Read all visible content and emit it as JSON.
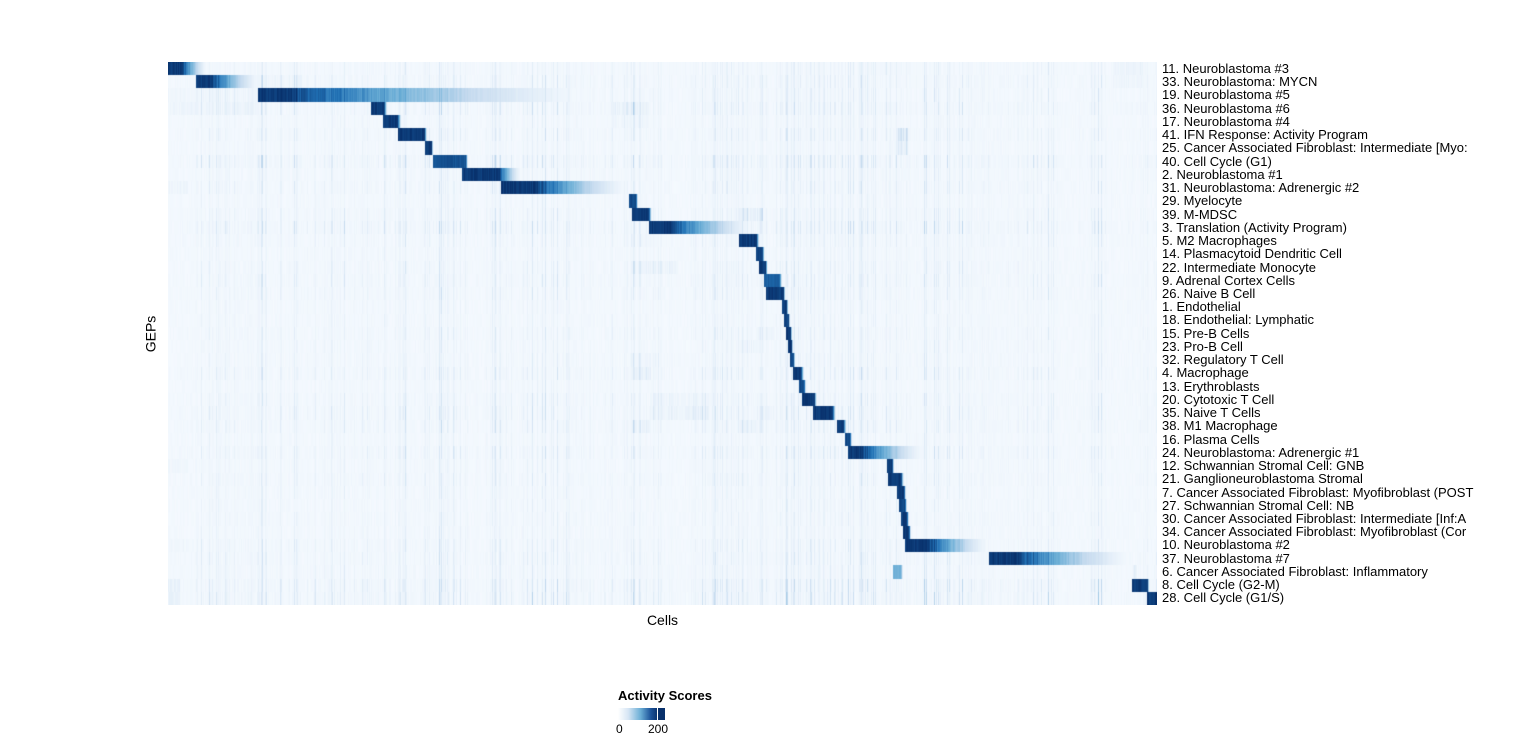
{
  "chart_data": {
    "type": "heatmap",
    "xlabel": "Cells",
    "ylabel": "GEPs",
    "legend": {
      "title": "Activity Scores",
      "tick_labels": [
        "0",
        "200"
      ],
      "tick_values": [
        0,
        200
      ],
      "tick_frac": 0.85
    },
    "colormap": {
      "low": "#F7FBFF",
      "high": "#08306B",
      "stops": [
        "#F7FBFF",
        "#C6DBEF",
        "#6BAED6",
        "#2171B5",
        "#08306B"
      ],
      "bar_css_stops": "#FFFFFF 0%, #D6E5F4 22%, #6BAED6 48%, #1B5299 70%, #08306B 85%, #08306B 100%"
    },
    "grid": false,
    "n_rows": 41,
    "value_range": [
      0,
      200
    ],
    "rows": [
      {
        "label": "11. Neuroblastoma #3",
        "block": [
          0.0,
          0.015,
          0.04
        ],
        "peak": 1.0,
        "noise": 0.35,
        "patches": [
          [
            0.7,
            0.75,
            0.18
          ],
          [
            0.955,
            0.985,
            0.35
          ]
        ]
      },
      {
        "label": "33. Neuroblastoma: MYCN",
        "block": [
          0.028,
          0.045,
          0.095
        ],
        "peak": 1.0,
        "noise": 0.5,
        "patches": [
          [
            0.095,
            0.135,
            0.3
          ],
          [
            0.955,
            0.985,
            0.3
          ]
        ]
      },
      {
        "label": "19. Neuroblastoma #5",
        "block": [
          0.091,
          0.125,
          0.44
        ],
        "peak": 1.0,
        "noise": 0.45,
        "patches": [
          [
            0.0,
            0.09,
            0.25
          ]
        ]
      },
      {
        "label": "36. Neuroblastoma #6",
        "block": [
          0.205,
          0.218,
          0.222
        ],
        "peak": 1.0,
        "noise": 0.6,
        "patches": [
          [
            0.0,
            0.09,
            0.3
          ],
          [
            0.449,
            0.486,
            0.4
          ],
          [
            0.955,
            0.985,
            0.2
          ]
        ]
      },
      {
        "label": "17. Neuroblastoma #4",
        "block": [
          0.217,
          0.232,
          0.236
        ],
        "peak": 1.0,
        "noise": 0.3,
        "patches": [
          [
            0.449,
            0.486,
            0.25
          ]
        ]
      },
      {
        "label": "41. IFN Response: Activity Program",
        "block": [
          0.232,
          0.259,
          0.262
        ],
        "peak": 1.0,
        "noise": 0.5,
        "patches": [
          [
            0.737,
            0.748,
            0.75
          ]
        ]
      },
      {
        "label": "25. Cancer Associated Fibroblast: Intermediate [Myo:",
        "block": [
          0.259,
          0.266,
          0.268
        ],
        "peak": 1.0,
        "noise": 0.3,
        "patches": [
          [
            0.737,
            0.748,
            0.5
          ]
        ]
      },
      {
        "label": "40. Cell Cycle (G1)",
        "block": [
          0.267,
          0.301,
          0.303
        ],
        "peak": 0.9,
        "noise": 0.85,
        "patches": []
      },
      {
        "label": "2. Neuroblastoma #1",
        "block": [
          0.297,
          0.334,
          0.358
        ],
        "peak": 1.0,
        "noise": 0.4,
        "patches": []
      },
      {
        "label": "31. Neuroblastoma: Adrenergic #2",
        "block": [
          0.336,
          0.372,
          0.47
        ],
        "peak": 1.0,
        "noise": 0.5,
        "patches": [
          [
            0.0,
            0.02,
            0.3
          ]
        ]
      },
      {
        "label": "29. Myelocyte",
        "block": [
          0.466,
          0.473,
          0.475
        ],
        "peak": 0.95,
        "noise": 0.3,
        "patches": []
      },
      {
        "label": "39. M-MDSC",
        "block": [
          0.469,
          0.486,
          0.489
        ],
        "peak": 1.0,
        "noise": 0.5,
        "patches": [
          [
            0.577,
            0.601,
            0.45
          ]
        ]
      },
      {
        "label": "3. Translation (Activity Program)",
        "block": [
          0.486,
          0.51,
          0.596
        ],
        "peak": 1.0,
        "noise": 0.8,
        "patches": []
      },
      {
        "label": "5. M2 Macrophages",
        "block": [
          0.577,
          0.595,
          0.598
        ],
        "peak": 1.0,
        "noise": 0.45,
        "patches": [
          [
            0.469,
            0.489,
            0.25
          ]
        ]
      },
      {
        "label": "14. Plasmacytoid Dendritic Cell",
        "block": [
          0.594,
          0.601,
          0.603
        ],
        "peak": 0.95,
        "noise": 0.3,
        "patches": []
      },
      {
        "label": "22. Intermediate Monocyte",
        "block": [
          0.597,
          0.604,
          0.606
        ],
        "peak": 1.0,
        "noise": 0.45,
        "patches": [
          [
            0.469,
            0.515,
            0.35
          ]
        ]
      },
      {
        "label": "9. Adrenal Cortex Cells",
        "block": [
          0.602,
          0.618,
          0.621
        ],
        "peak": 0.85,
        "noise": 0.55,
        "patches": []
      },
      {
        "label": "26. Naive B Cell",
        "block": [
          0.604,
          0.622,
          0.624
        ],
        "peak": 1.0,
        "noise": 0.45,
        "patches": []
      },
      {
        "label": "1. Endothelial",
        "block": [
          0.62,
          0.625,
          0.627
        ],
        "peak": 1.0,
        "noise": 0.3,
        "patches": []
      },
      {
        "label": "18. Endothelial: Lymphatic",
        "block": [
          0.622,
          0.627,
          0.629
        ],
        "peak": 0.95,
        "noise": 0.3,
        "patches": []
      },
      {
        "label": "15. Pre-B Cells",
        "block": [
          0.624,
          0.629,
          0.631
        ],
        "peak": 1.0,
        "noise": 0.4,
        "patches": [
          [
            0.595,
            0.612,
            0.3
          ]
        ]
      },
      {
        "label": "23. Pro-B Cell",
        "block": [
          0.626,
          0.63,
          0.632
        ],
        "peak": 1.0,
        "noise": 0.35,
        "patches": [
          [
            0.578,
            0.598,
            0.25
          ]
        ]
      },
      {
        "label": "32. Regulatory T Cell",
        "block": [
          0.628,
          0.632,
          0.634
        ],
        "peak": 0.95,
        "noise": 0.35,
        "patches": [
          [
            0.469,
            0.496,
            0.25
          ]
        ]
      },
      {
        "label": "4. Macrophage",
        "block": [
          0.631,
          0.64,
          0.643
        ],
        "peak": 1.0,
        "noise": 0.55,
        "patches": [
          [
            0.469,
            0.488,
            0.4
          ]
        ]
      },
      {
        "label": "13. Erythroblasts",
        "block": [
          0.638,
          0.643,
          0.645
        ],
        "peak": 0.95,
        "noise": 0.3,
        "patches": []
      },
      {
        "label": "20. Cytotoxic T Cell",
        "block": [
          0.641,
          0.653,
          0.656
        ],
        "peak": 1.0,
        "noise": 0.5,
        "patches": [
          [
            0.487,
            0.547,
            0.3
          ]
        ]
      },
      {
        "label": "35. Naive T Cells",
        "block": [
          0.652,
          0.672,
          0.675
        ],
        "peak": 1.0,
        "noise": 0.6,
        "patches": [
          [
            0.487,
            0.547,
            0.4
          ],
          [
            0.595,
            0.612,
            0.3
          ]
        ]
      },
      {
        "label": "38. M1 Macrophage",
        "block": [
          0.676,
          0.683,
          0.686
        ],
        "peak": 1.0,
        "noise": 0.55,
        "patches": [
          [
            0.469,
            0.488,
            0.35
          ],
          [
            0.575,
            0.602,
            0.3
          ]
        ]
      },
      {
        "label": "16. Plasma Cells",
        "block": [
          0.684,
          0.689,
          0.692
        ],
        "peak": 0.95,
        "noise": 0.3,
        "patches": []
      },
      {
        "label": "24. Neuroblastoma: Adrenergic #1",
        "block": [
          0.687,
          0.702,
          0.768
        ],
        "peak": 1.0,
        "noise": 0.6,
        "patches": []
      },
      {
        "label": "12. Schwannian Stromal Cell: GNB",
        "block": [
          0.726,
          0.732,
          0.734
        ],
        "peak": 1.0,
        "noise": 0.35,
        "patches": [
          [
            0.0,
            0.02,
            0.25
          ]
        ]
      },
      {
        "label": "21. Ganglioneuroblastoma Stromal",
        "block": [
          0.728,
          0.741,
          0.744
        ],
        "peak": 1.0,
        "noise": 0.45,
        "patches": []
      },
      {
        "label": "7. Cancer Associated Fibroblast: Myofibroblast (POST",
        "block": [
          0.737,
          0.744,
          0.746
        ],
        "peak": 1.0,
        "noise": 0.3,
        "patches": []
      },
      {
        "label": "27. Schwannian Stromal Cell: NB",
        "block": [
          0.739,
          0.745,
          0.747
        ],
        "peak": 0.95,
        "noise": 0.3,
        "patches": []
      },
      {
        "label": "30. Cancer Associated Fibroblast: Intermediate [Inf:A",
        "block": [
          0.741,
          0.747,
          0.749
        ],
        "peak": 1.0,
        "noise": 0.35,
        "patches": []
      },
      {
        "label": "34. Cancer Associated Fibroblast: Myofibroblast (Cor",
        "block": [
          0.743,
          0.749,
          0.751
        ],
        "peak": 1.0,
        "noise": 0.3,
        "patches": []
      },
      {
        "label": "10. Neuroblastoma #2",
        "block": [
          0.745,
          0.77,
          0.833
        ],
        "peak": 1.0,
        "noise": 0.5,
        "patches": [
          [
            0.0,
            0.02,
            0.25
          ]
        ]
      },
      {
        "label": "37. Neuroblastoma #7",
        "block": [
          0.83,
          0.86,
          0.98
        ],
        "peak": 1.0,
        "noise": 0.55,
        "patches": []
      },
      {
        "label": "6. Cancer Associated Fibroblast: Inflammatory",
        "block": [
          0.733,
          0.741,
          0.743
        ],
        "peak": 0.5,
        "noise": 0.45,
        "patches": [
          [
            0.975,
            0.979,
            0.7
          ]
        ]
      },
      {
        "label": "8. Cell Cycle (G2-M)",
        "block": [
          0.974,
          0.99,
          0.992
        ],
        "peak": 1.0,
        "noise": 0.85,
        "patches": [
          [
            0.0,
            0.012,
            0.5
          ]
        ]
      },
      {
        "label": "28. Cell Cycle (G1/S)",
        "block": [
          0.989,
          0.9995,
          1.0
        ],
        "peak": 1.0,
        "noise": 0.9,
        "patches": [
          [
            0.0,
            0.012,
            0.55
          ]
        ]
      }
    ]
  }
}
